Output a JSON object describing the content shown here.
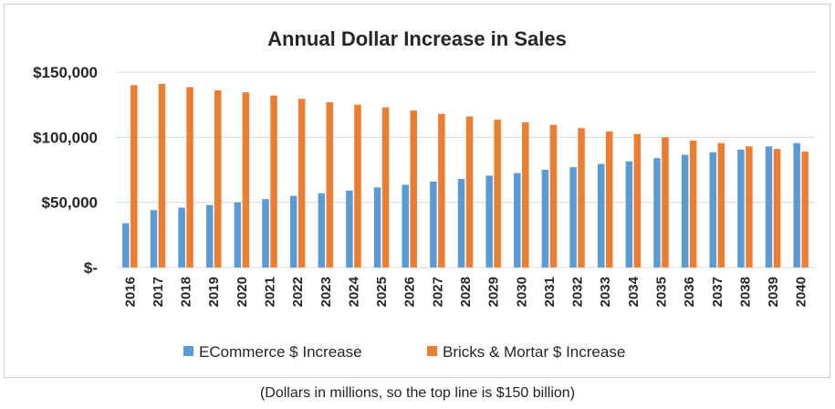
{
  "chart_data": {
    "type": "bar",
    "title": "Annual Dollar Increase in Sales",
    "categories": [
      "2016",
      "2017",
      "2018",
      "2019",
      "2020",
      "2021",
      "2022",
      "2023",
      "2024",
      "2025",
      "2026",
      "2027",
      "2028",
      "2029",
      "2030",
      "2031",
      "2032",
      "2033",
      "2034",
      "2035",
      "2036",
      "2037",
      "2038",
      "2039",
      "2040"
    ],
    "series": [
      {
        "name": "ECommerce $ Increase",
        "color": "#5b9bd5",
        "values": [
          34000,
          44000,
          46000,
          48000,
          50000,
          52500,
          55000,
          57000,
          59000,
          61500,
          63500,
          66000,
          68000,
          70500,
          72500,
          75000,
          77000,
          79500,
          81500,
          84000,
          86500,
          88500,
          90500,
          93000,
          95500
        ]
      },
      {
        "name": "Bricks & Mortar $ Increase",
        "color": "#ed7d31",
        "values": [
          140000,
          141000,
          138500,
          136000,
          134500,
          132000,
          129500,
          127000,
          125000,
          123000,
          120500,
          118000,
          116000,
          113500,
          111500,
          109500,
          107000,
          104500,
          102500,
          100000,
          97500,
          95500,
          93000,
          91000,
          89000
        ]
      }
    ],
    "y_ticks": [
      {
        "value": 0,
        "label": "$-"
      },
      {
        "value": 50000,
        "label": "$50,000"
      },
      {
        "value": 100000,
        "label": "$100,000"
      },
      {
        "value": 150000,
        "label": "$150,000"
      }
    ],
    "ylim": [
      0,
      150000
    ],
    "grid": true,
    "legend_position": "bottom",
    "gridline_color": "#d9d9d9"
  },
  "caption": "(Dollars in millions, so the top line is $150 billion)"
}
